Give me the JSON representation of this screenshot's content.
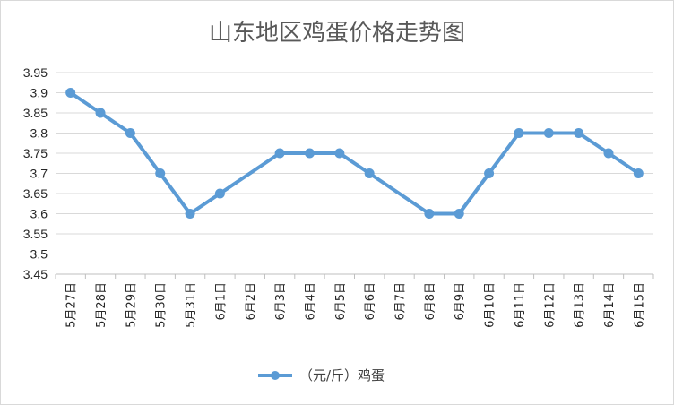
{
  "chart_data": {
    "type": "line",
    "title": "山东地区鸡蛋价格走势图",
    "xlabel": "",
    "ylabel": "",
    "categories": [
      "5月27日",
      "5月28日",
      "5月29日",
      "5月30日",
      "5月31日",
      "6月1日",
      "6月2日",
      "6月3日",
      "6月4日",
      "6月5日",
      "6月6日",
      "6月7日",
      "6月8日",
      "6月9日",
      "6月10日",
      "6月11日",
      "6月12日",
      "6月13日",
      "6月14日",
      "6月15日"
    ],
    "series": [
      {
        "name": "（元/斤）鸡蛋",
        "values": [
          3.9,
          3.85,
          3.8,
          3.7,
          3.6,
          3.65,
          null,
          3.75,
          3.75,
          3.75,
          3.7,
          null,
          3.6,
          3.6,
          3.7,
          3.8,
          3.8,
          3.8,
          3.75,
          3.7
        ],
        "color": "#5b9bd5"
      }
    ],
    "ylim": [
      3.45,
      3.95
    ],
    "yticks": [
      "3.45",
      "3.5",
      "3.55",
      "3.6",
      "3.65",
      "3.7",
      "3.75",
      "3.8",
      "3.85",
      "3.9",
      "3.95"
    ],
    "grid": true,
    "legend_position": "bottom"
  }
}
